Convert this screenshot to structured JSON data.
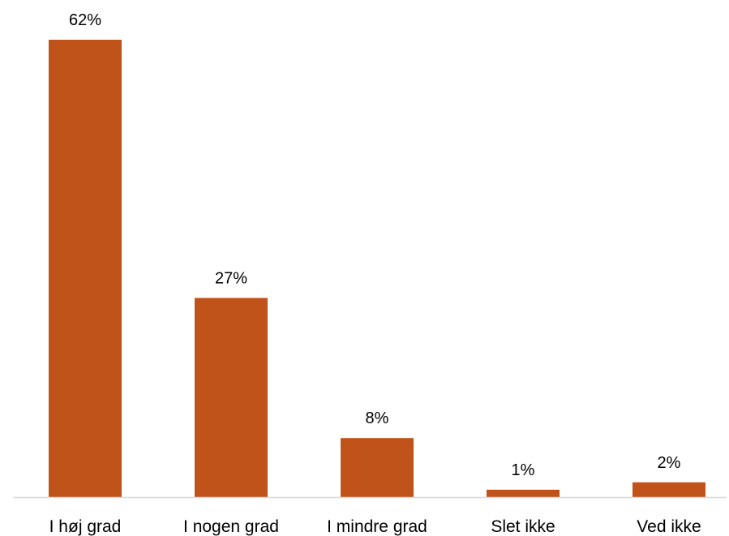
{
  "chart_data": {
    "type": "bar",
    "categories": [
      "I høj grad",
      "I nogen grad",
      "I mindre grad",
      "Slet ikke",
      "Ved ikke"
    ],
    "values": [
      62,
      27,
      8,
      1,
      2
    ],
    "value_labels": [
      "62%",
      "27%",
      "8%",
      "1%",
      "2%"
    ],
    "title": "",
    "xlabel": "",
    "ylabel": "",
    "ylim": [
      0,
      62
    ],
    "grid": false,
    "legend": "none",
    "bar_color": "#C0531A",
    "axis_color": "#D9D9D9"
  }
}
